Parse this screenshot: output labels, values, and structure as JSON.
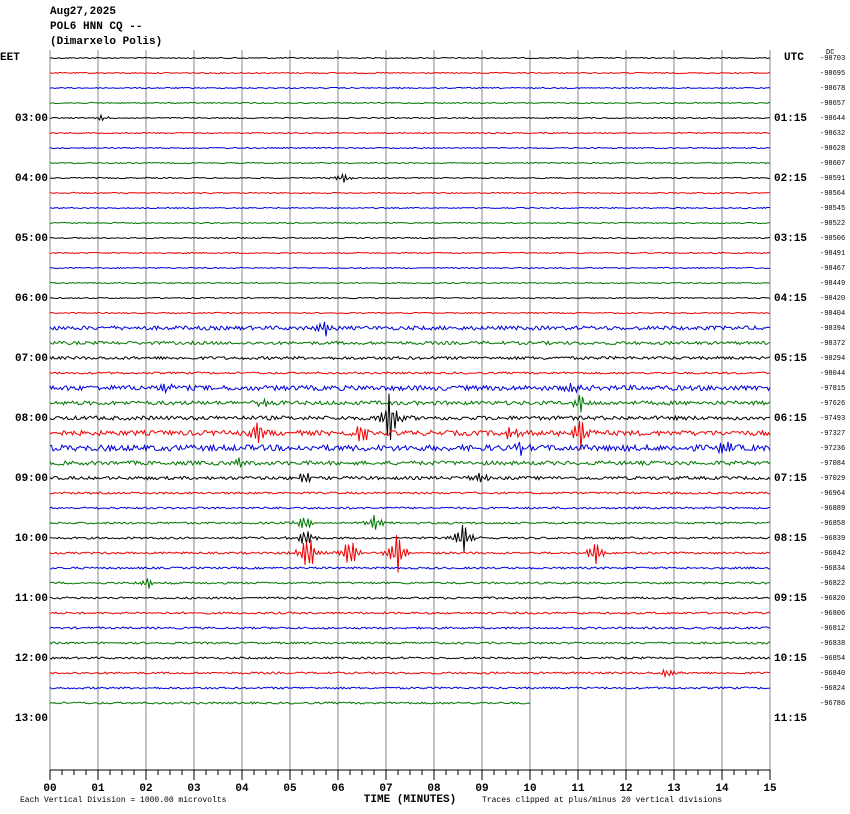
{
  "header": {
    "date": "Aug27,2025",
    "station": "POL6 HNN CQ --",
    "location": "(Dimarxelo Polis)"
  },
  "left_label": "EET",
  "right_label": "UTC",
  "dc": "DC",
  "left_times": [
    "03:00",
    "04:00",
    "05:00",
    "06:00",
    "07:00",
    "08:00",
    "09:00",
    "10:00",
    "11:00",
    "12:00",
    "13:00"
  ],
  "right_times": [
    "01:15",
    "02:15",
    "03:15",
    "04:15",
    "05:15",
    "06:15",
    "07:15",
    "08:15",
    "09:15",
    "10:15",
    "11:15"
  ],
  "trace_offsets": [
    -98703,
    -98695,
    -98678,
    -98657,
    -98644,
    -98632,
    -98628,
    -98607,
    -98591,
    -98564,
    -98545,
    -98522,
    -98506,
    -98491,
    -98467,
    -98449,
    -98420,
    -98404,
    -98394,
    -98372,
    -98294,
    -98044,
    -97815,
    -97626,
    -97493,
    -97327,
    -97236,
    -97084,
    -97029,
    -96964,
    -96889,
    -96858,
    -96839,
    -96842,
    -96834,
    -96822,
    -96820,
    -96806,
    -96812,
    -96838,
    -96854,
    -96840,
    -96824,
    -96786
  ],
  "x_axis": {
    "label": "TIME (MINUTES)",
    "ticks": [
      "00",
      "01",
      "02",
      "03",
      "04",
      "05",
      "06",
      "07",
      "08",
      "09",
      "10",
      "11",
      "12",
      "13",
      "14",
      "15"
    ]
  },
  "footer": {
    "scale": "Each Vertical Division = 1000.00 microvolts",
    "clip": "Traces clipped at plus/minus 20 vertical divisions"
  }
}
